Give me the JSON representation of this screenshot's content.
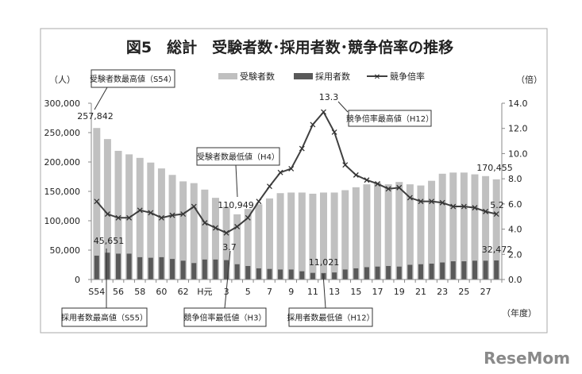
{
  "chart_data": {
    "type": "bar+line",
    "title": "図5　総計　受験者数･採用者数･競争倍率の推移",
    "y_left_unit": "（人）",
    "y_right_unit": "（倍）",
    "x_unit": "（年度）",
    "ylim_left": [
      0,
      300000
    ],
    "ylim_right": [
      0,
      14
    ],
    "yticks_left": [
      "0",
      "50,000",
      "100,000",
      "150,000",
      "200,000",
      "250,000",
      "300,000"
    ],
    "yticks_right": [
      "0.0",
      "2.0",
      "4.0",
      "6.0",
      "8.0",
      "10.0",
      "12.0",
      "14.0"
    ],
    "categories": [
      "S54",
      "55",
      "56",
      "57",
      "58",
      "59",
      "60",
      "61",
      "62",
      "63",
      "H元",
      "2",
      "3",
      "4",
      "5",
      "6",
      "7",
      "8",
      "9",
      "10",
      "11",
      "12",
      "13",
      "14",
      "15",
      "16",
      "17",
      "18",
      "19",
      "20",
      "21",
      "22",
      "23",
      "24",
      "25",
      "26",
      "27",
      "28"
    ],
    "xtick_labels": [
      "S54",
      "56",
      "58",
      "60",
      "62",
      "H元",
      "3",
      "5",
      "7",
      "9",
      "11",
      "13",
      "15",
      "17",
      "19",
      "21",
      "23",
      "25",
      "27"
    ],
    "legend_position": "top",
    "series": [
      {
        "name": "受験者数",
        "type": "bar",
        "color": "#c0c0c0",
        "values": [
          257842,
          239000,
          219000,
          213000,
          207000,
          199000,
          189000,
          178000,
          167000,
          164000,
          153000,
          139000,
          124000,
          110949,
          120000,
          128000,
          138000,
          147000,
          148000,
          148000,
          146000,
          148000,
          148000,
          152000,
          157000,
          162000,
          165000,
          162000,
          166000,
          162000,
          160000,
          168000,
          180000,
          182000,
          182000,
          179000,
          176000,
          170455
        ]
      },
      {
        "name": "採用者数",
        "type": "bar",
        "color": "#595959",
        "values": [
          40600,
          45651,
          44000,
          44000,
          38000,
          37000,
          38000,
          35000,
          32000,
          28000,
          34000,
          34000,
          33000,
          26000,
          23000,
          19000,
          18000,
          17000,
          17000,
          14000,
          11300,
          11021,
          12000,
          17000,
          19000,
          21000,
          22000,
          23000,
          22000,
          25000,
          26000,
          27000,
          29000,
          31000,
          31000,
          32000,
          32000,
          32472
        ]
      },
      {
        "name": "競争倍率",
        "type": "line",
        "axis": "right",
        "color": "#404040",
        "values": [
          6.2,
          5.2,
          4.9,
          4.9,
          5.5,
          5.3,
          4.9,
          5.1,
          5.2,
          5.8,
          4.5,
          4.1,
          3.7,
          4.2,
          4.9,
          6.2,
          7.4,
          8.5,
          8.8,
          10.4,
          12.3,
          13.3,
          11.7,
          9.1,
          8.3,
          7.9,
          7.6,
          7.2,
          7.3,
          6.5,
          6.2,
          6.2,
          6.1,
          5.8,
          5.8,
          5.7,
          5.4,
          5.2
        ]
      }
    ],
    "data_labels": [
      "257,842",
      "45,651",
      "110,949",
      "3.7",
      "13.3",
      "11,021",
      "170,455",
      "5.2",
      "32,472"
    ],
    "annotations": [
      "受験者数最高値（S54）",
      "受験者数最低値（H4）",
      "競争倍率最高値（H12）",
      "採用者数最高値（S55）",
      "競争倍率最低値（H3）",
      "採用者数最低値（H12）"
    ]
  },
  "logo": "ReseMom"
}
